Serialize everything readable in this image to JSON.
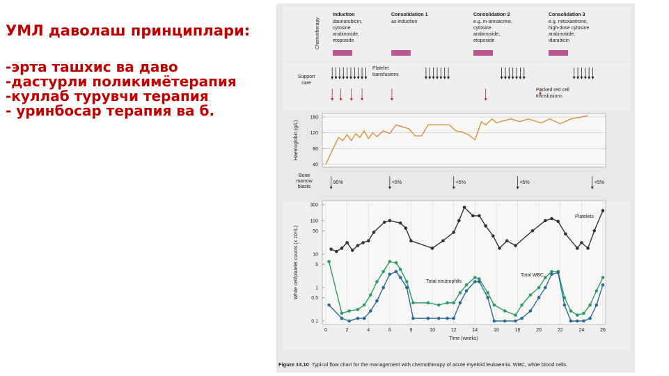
{
  "slide": {
    "title": "УМЛ даволаш принциплари:",
    "bullets": [
      "-эрта ташхис ва даво",
      "-дастурли поликимётерапия",
      "-куллаб турувчи терапия",
      "- уринбосар терапия ва б."
    ]
  },
  "figure": {
    "chemotherapy": {
      "label": "Chemotherapy",
      "phases": [
        {
          "name": "Induction",
          "drugs": [
            "daunorubicin,",
            "cytosine",
            "arabinoside,",
            "etoposide"
          ]
        },
        {
          "name": "Consolidation 1",
          "drugs": [
            "as induction"
          ]
        },
        {
          "name": "Consolidation 2",
          "drugs": [
            "e.g. m-amsacrine,",
            "cytosine",
            "arabinoside,",
            "etoposide"
          ]
        },
        {
          "name": "Consolidation 3",
          "drugs": [
            "e.g. mitoxantrone,",
            "high-dose cytosine",
            "arabinoside,",
            "idarubicin"
          ]
        }
      ]
    },
    "support_care": {
      "label": [
        "Support",
        "care"
      ],
      "platelet_label": [
        "Platelet",
        "transfusions"
      ],
      "red_cell_label": [
        "Packed red cell",
        "transfusions"
      ],
      "platelet_x": [
        0.6,
        0.95,
        1.3,
        1.65,
        2.0,
        2.35,
        2.7,
        3.05,
        3.4,
        3.75,
        9.4,
        9.75,
        10.1,
        10.45,
        10.8,
        11.15,
        11.5,
        16.5,
        16.85,
        17.2,
        17.55,
        17.9,
        18.25,
        18.6,
        23.3,
        23.65,
        24.0,
        24.35,
        24.7,
        25.05
      ],
      "red_cell_x": [
        0.6,
        1.4,
        2.4,
        3.4,
        6.2,
        15.0
      ]
    },
    "bone_marrow": {
      "label": [
        "Bone",
        "marrow",
        "blasts"
      ],
      "x": [
        0.5,
        6.0,
        12.0,
        18.0,
        25.0
      ],
      "labels": [
        "90%",
        "<5%",
        "<5%",
        "<5%",
        "<5%"
      ]
    },
    "caption": {
      "number": "Figure 13.10",
      "text": "Typical flow chart for the management with chemotherapy of acute myeloid leukaemia. WBC, white blood cells."
    }
  },
  "chart_data": [
    {
      "type": "line",
      "ylabel": "Haemoglobin (g/L)",
      "color": "#d9903a",
      "xlim": [
        0,
        26
      ],
      "ylim": [
        40,
        160
      ],
      "yticks": [
        40,
        80,
        120,
        160
      ],
      "grid": true,
      "x": [
        0,
        0.6,
        1.2,
        1.6,
        2,
        2.4,
        2.8,
        3.2,
        3.6,
        4,
        4.4,
        4.8,
        5.4,
        6,
        6.6,
        7.2,
        7.8,
        8.4,
        9,
        9.6,
        10.4,
        11,
        11.6,
        12.2,
        12.8,
        13.4,
        14,
        14.6,
        15,
        15.6,
        16,
        16.6,
        17.4,
        18.2,
        19,
        20.2,
        21,
        22,
        23,
        24,
        24.6
      ],
      "values": [
        40,
        75,
        108,
        100,
        115,
        100,
        118,
        108,
        125,
        105,
        120,
        110,
        125,
        118,
        140,
        135,
        130,
        112,
        112,
        140,
        140,
        140,
        140,
        125,
        122,
        115,
        102,
        148,
        140,
        155,
        145,
        150,
        155,
        148,
        155,
        145,
        155,
        143,
        155,
        160,
        163
      ]
    },
    {
      "type": "line",
      "log": true,
      "xlabel": "Time (weeks)",
      "ylabel": "White cell/platelet counts (x 10⁹/L)",
      "xlim": [
        0,
        26
      ],
      "xticks": [
        0,
        2,
        4,
        6,
        8,
        10,
        12,
        14,
        16,
        18,
        20,
        22,
        24,
        26
      ],
      "ylim": [
        0.1,
        300
      ],
      "yticks": [
        0.1,
        0.5,
        1,
        5,
        10,
        50,
        100,
        300
      ],
      "grid": true,
      "annotations": [
        "Platelets",
        "Total WBC",
        "Total neutrophils"
      ],
      "series": [
        {
          "name": "Platelets",
          "color": "#333333",
          "x": [
            0.5,
            1,
            1.5,
            2,
            2.5,
            3,
            3.5,
            4,
            4.5,
            5.5,
            6,
            7,
            7.5,
            8,
            10,
            11,
            12,
            12.5,
            13,
            13.8,
            14.4,
            15,
            15.7,
            16.3,
            17,
            17.8,
            19.4,
            20.6,
            21.2,
            21.8,
            22.5,
            23.6,
            24,
            24.6,
            25.2,
            26
          ],
          "values": [
            14,
            12,
            15,
            22,
            13,
            18,
            22,
            25,
            45,
            90,
            100,
            85,
            60,
            25,
            15,
            25,
            45,
            100,
            250,
            140,
            140,
            70,
            35,
            15,
            25,
            18,
            50,
            100,
            115,
            95,
            40,
            15,
            22,
            15,
            50,
            200
          ]
        },
        {
          "name": "Total WBC",
          "color": "#2e9a6a",
          "x": [
            0.3,
            1.5,
            2.2,
            3,
            3.6,
            4.2,
            4.8,
            5.4,
            6,
            6.6,
            7,
            7.6,
            8.2,
            9.6,
            10.6,
            11.4,
            12,
            12.6,
            13.2,
            14,
            14.4,
            15.2,
            15.8,
            16.8,
            17.8,
            18.4,
            19.2,
            20,
            20.6,
            21.2,
            21.8,
            22.4,
            23,
            23.6,
            24.2,
            24.8,
            25.4,
            26
          ],
          "values": [
            6,
            0.17,
            0.2,
            0.22,
            0.3,
            0.6,
            1.5,
            3,
            6,
            5.5,
            3.5,
            1.5,
            0.35,
            0.35,
            0.3,
            0.35,
            0.35,
            0.7,
            1.2,
            2,
            1.8,
            0.7,
            0.3,
            0.2,
            0.15,
            0.3,
            0.6,
            1,
            2,
            3,
            3,
            0.5,
            0.2,
            0.15,
            0.17,
            0.3,
            0.8,
            2
          ]
        },
        {
          "name": "Total neutrophils",
          "color": "#2a6a9a",
          "x": [
            0.3,
            1.5,
            2.2,
            3,
            3.6,
            4.2,
            4.8,
            5.4,
            6,
            6.6,
            7,
            7.6,
            8.2,
            9.6,
            10.6,
            11.4,
            12,
            12.6,
            13.2,
            14,
            14.4,
            15.2,
            15.8,
            16.8,
            17.8,
            18.4,
            19.2,
            20,
            20.6,
            21.2,
            21.8,
            22.4,
            23,
            23.6,
            24.2,
            24.8,
            25.4,
            26
          ],
          "values": [
            0.3,
            0.12,
            0.1,
            0.12,
            0.12,
            0.2,
            0.4,
            1,
            2.5,
            3,
            2,
            1,
            0.12,
            0.12,
            0.12,
            0.12,
            0.12,
            0.35,
            0.8,
            1.5,
            1.5,
            0.5,
            0.1,
            0.1,
            0.1,
            0.12,
            0.2,
            0.5,
            1,
            2.5,
            2.8,
            0.3,
            0.1,
            0.1,
            0.1,
            0.12,
            0.3,
            1.2
          ]
        }
      ]
    }
  ]
}
